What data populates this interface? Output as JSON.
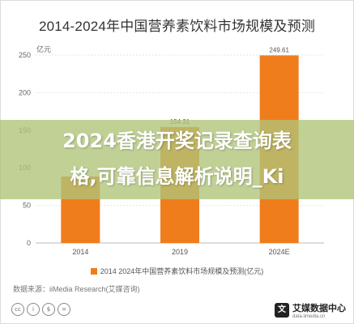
{
  "chart_data": {
    "type": "bar",
    "title": "2014-2024年中国营养素饮料市场规模及预测",
    "ylabel": "亿元",
    "categories": [
      "2014",
      "2019",
      "2024E"
    ],
    "values": [
      88.5,
      154.31,
      249.61
    ],
    "data_labels": [
      "",
      "154.31",
      "249.61"
    ],
    "ylim": [
      0,
      250
    ],
    "yticks": [
      "0",
      "50",
      "100",
      "150",
      "200",
      "250"
    ],
    "grid": true,
    "legend": "bottom-center",
    "series": [
      {
        "name": "2014  2024年中国营养素饮料市场规模及预测(亿元)",
        "values": [
          88.5,
          154.31,
          249.61
        ]
      }
    ],
    "bar_color": "#f07d1c"
  },
  "source": "数据来源：iiMedia Research(艾媒咨询)",
  "license_icons": [
    "cc-icon",
    "by-icon",
    "nc-icon",
    "nd-icon"
  ],
  "logo": {
    "mark": "文",
    "name": "艾媒数据中心",
    "site": "data.iimedia.cn"
  },
  "banner": {
    "line1": "2024香港开奖记录查询表",
    "line2": "格,可靠信息解析说明_Ki"
  }
}
